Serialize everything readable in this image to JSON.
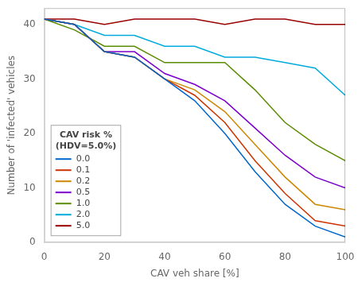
{
  "chart_data": {
    "type": "line",
    "x": [
      0,
      10,
      20,
      30,
      40,
      50,
      60,
      70,
      80,
      90,
      100
    ],
    "series": [
      {
        "name": "0.0",
        "color": "#0066CC",
        "values": [
          41,
          40,
          35,
          34,
          30,
          26,
          20,
          13,
          7,
          3,
          1
        ]
      },
      {
        "name": "0.1",
        "color": "#CC3300",
        "values": [
          41,
          40,
          35,
          34,
          30,
          27,
          22,
          15,
          9,
          4,
          3
        ]
      },
      {
        "name": "0.2",
        "color": "#CC8800",
        "values": [
          41,
          40,
          35,
          34,
          30,
          28,
          24,
          18,
          12,
          7,
          6
        ]
      },
      {
        "name": "0.5",
        "color": "#7B00CC",
        "values": [
          41,
          40,
          35,
          35,
          31,
          29,
          26,
          21,
          16,
          12,
          10
        ]
      },
      {
        "name": "1.0",
        "color": "#5A8C00",
        "values": [
          41,
          39,
          36,
          36,
          33,
          33,
          33,
          28,
          22,
          18,
          15
        ]
      },
      {
        "name": "2.0",
        "color": "#00AADD",
        "values": [
          41,
          40,
          38,
          38,
          36,
          36,
          34,
          34,
          33,
          32,
          27
        ]
      },
      {
        "name": "5.0",
        "color": "#990000",
        "values": [
          41,
          41,
          40,
          41,
          41,
          41,
          40,
          41,
          41,
          40,
          40
        ]
      }
    ],
    "xlabel": "CAV veh share [%]",
    "ylabel": "Number of 'infected' vehicles",
    "legend_title": [
      "CAV risk %",
      "(HDV=5.0%)"
    ],
    "xlim": [
      0,
      100
    ],
    "ylim": [
      0,
      43
    ],
    "xticks": [
      0,
      20,
      40,
      60,
      80,
      100
    ],
    "yticks": [
      0,
      10,
      20,
      30,
      40
    ],
    "grid": false,
    "legend": "lower left"
  }
}
